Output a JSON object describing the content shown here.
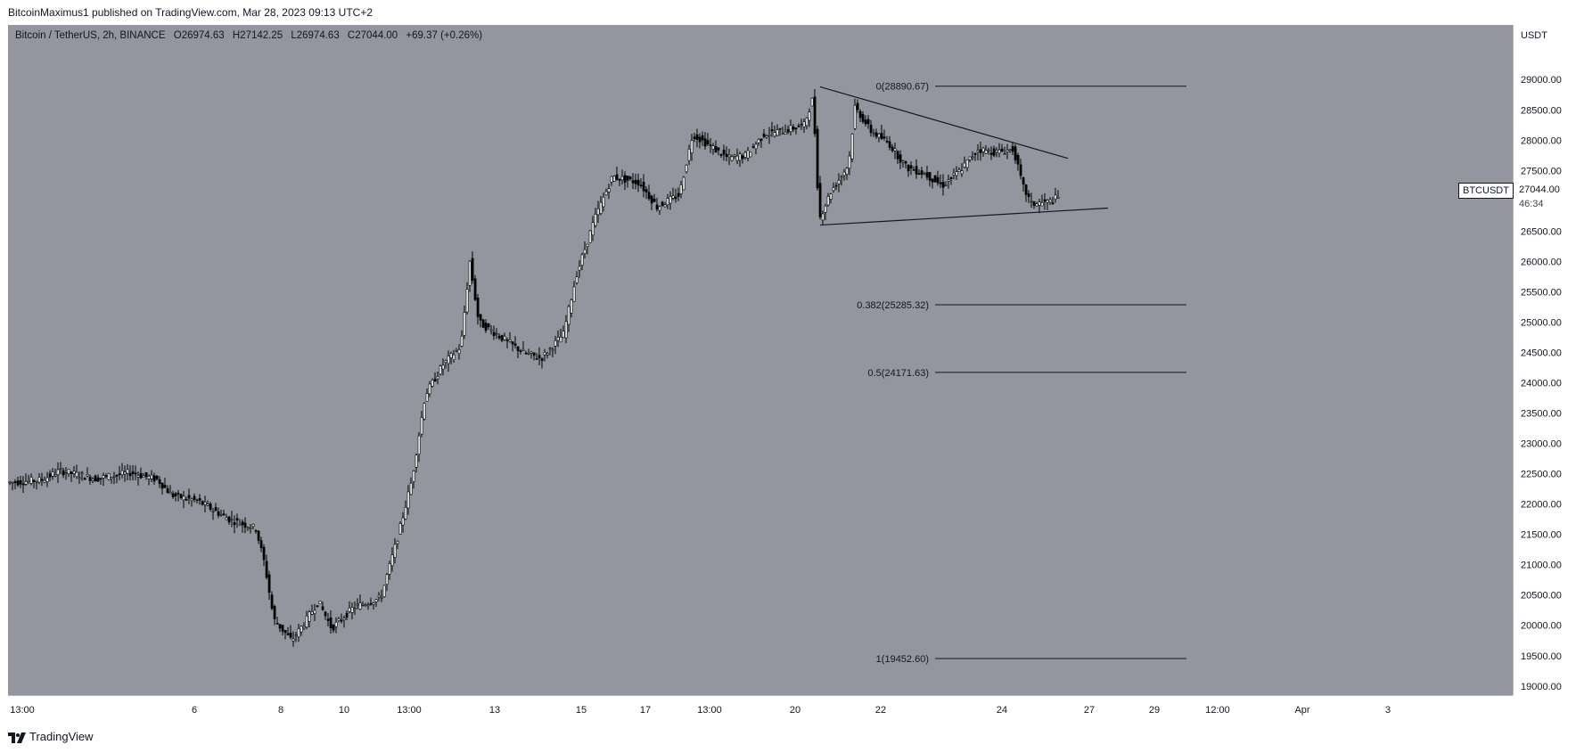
{
  "header": {
    "publisher_line": "BitcoinMaximus1 published on TradingView.com, Mar 28, 2023 09:13 UTC+2"
  },
  "legend": {
    "symbol": "Bitcoin / TetherUS, 2h, BINANCE",
    "open_label": "O",
    "open": "26974.63",
    "high_label": "H",
    "high": "27142.25",
    "low_label": "L",
    "low": "26974.63",
    "close_label": "C",
    "close": "27044.00",
    "change": "+69.37 (+0.26%)"
  },
  "price_tag": {
    "symbol": "BTCUSDT",
    "price": "27044.00",
    "countdown": "46:34"
  },
  "footer": {
    "brand": "TradingView"
  },
  "colors": {
    "plot_bg": "#93969e",
    "candle": "#000000",
    "line": "#131722",
    "panel": "#ffffff"
  },
  "chart_data": {
    "type": "candlestick",
    "ylabel": "USDT",
    "ylim": [
      18850,
      29900
    ],
    "y_ticks": [
      "29000.00",
      "28500.00",
      "28000.00",
      "27500.00",
      "27000.00",
      "26500.00",
      "26000.00",
      "25500.00",
      "25000.00",
      "24500.00",
      "24000.00",
      "23500.00",
      "23000.00",
      "22500.00",
      "22000.00",
      "21500.00",
      "21000.00",
      "20500.00",
      "20000.00",
      "19500.00",
      "19000.00"
    ],
    "x_ticks": [
      "13:00",
      "6",
      "8",
      "10",
      "13:00",
      "13",
      "15",
      "17",
      "13:00",
      "20",
      "22",
      "24",
      "27",
      "29",
      "12:00",
      "Apr",
      "3"
    ],
    "price_path": [
      [
        0,
        22350
      ],
      [
        40,
        22400
      ],
      [
        60,
        22550
      ],
      [
        100,
        22420
      ],
      [
        140,
        22520
      ],
      [
        170,
        22400
      ],
      [
        185,
        22150
      ],
      [
        215,
        22050
      ],
      [
        250,
        21750
      ],
      [
        280,
        21600
      ],
      [
        290,
        21000
      ],
      [
        300,
        20100
      ],
      [
        320,
        19750
      ],
      [
        335,
        20050
      ],
      [
        350,
        20400
      ],
      [
        365,
        19950
      ],
      [
        390,
        20300
      ],
      [
        420,
        20450
      ],
      [
        440,
        21500
      ],
      [
        455,
        22400
      ],
      [
        470,
        23800
      ],
      [
        490,
        24300
      ],
      [
        510,
        24600
      ],
      [
        520,
        26000
      ],
      [
        530,
        25000
      ],
      [
        560,
        24700
      ],
      [
        580,
        24500
      ],
      [
        600,
        24400
      ],
      [
        625,
        24800
      ],
      [
        640,
        25800
      ],
      [
        660,
        26700
      ],
      [
        680,
        27400
      ],
      [
        710,
        27300
      ],
      [
        730,
        26900
      ],
      [
        755,
        27100
      ],
      [
        770,
        28100
      ],
      [
        790,
        27900
      ],
      [
        810,
        27700
      ],
      [
        830,
        27750
      ],
      [
        850,
        28100
      ],
      [
        870,
        28150
      ],
      [
        895,
        28250
      ],
      [
        905,
        28700
      ],
      [
        912,
        26700
      ],
      [
        925,
        27150
      ],
      [
        945,
        27600
      ],
      [
        952,
        28550
      ],
      [
        970,
        28150
      ],
      [
        990,
        27950
      ],
      [
        1010,
        27550
      ],
      [
        1030,
        27450
      ],
      [
        1050,
        27250
      ],
      [
        1070,
        27500
      ],
      [
        1090,
        27850
      ],
      [
        1110,
        27800
      ],
      [
        1130,
        27850
      ],
      [
        1140,
        27250
      ],
      [
        1150,
        26950
      ],
      [
        1170,
        26980
      ],
      [
        1178,
        27044
      ]
    ],
    "triangle": {
      "upper": [
        [
          911,
          28880
        ],
        [
          1189,
          27700
        ]
      ],
      "lower": [
        [
          911,
          26600
        ],
        [
          1234,
          26880
        ]
      ]
    },
    "fibonacci": [
      {
        "level": "0",
        "value": 28890.67,
        "label": "0(28890.67)"
      },
      {
        "level": "0.382",
        "value": 25285.32,
        "label": "0.382(25285.32)"
      },
      {
        "level": "0.5",
        "value": 24171.63,
        "label": "0.5(24171.63)"
      },
      {
        "level": "1",
        "value": 19452.6,
        "label": "1(19452.60)"
      }
    ]
  }
}
